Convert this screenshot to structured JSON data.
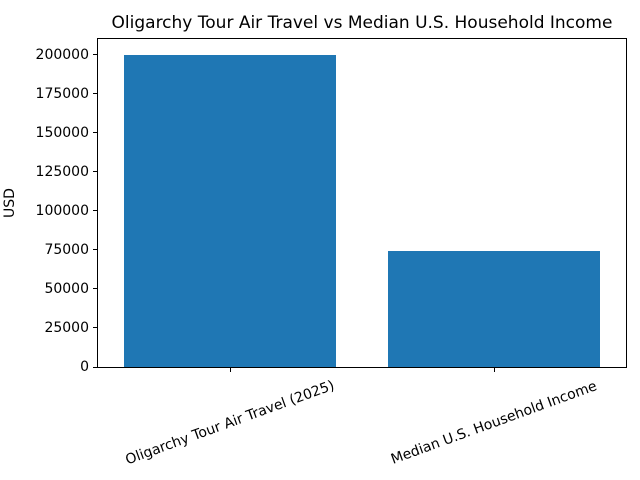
{
  "figure": {
    "background": "#ffffff",
    "text_color": "#000000",
    "spine_color": "#000000"
  },
  "chart_data": {
    "type": "bar",
    "title": "Oligarchy Tour Air Travel vs Median U.S. Household Income",
    "xlabel": "",
    "ylabel": "USD",
    "categories": [
      "Oligarchy Tour Air Travel (2025)",
      "Median U.S. Household Income"
    ],
    "values": [
      200000,
      74000
    ],
    "bar_color": "#1f77b4",
    "ylim": [
      0,
      210000
    ],
    "yticks": [
      0,
      25000,
      50000,
      75000,
      100000,
      125000,
      150000,
      175000,
      200000
    ],
    "grid": false,
    "legend": "none",
    "x_tick_label_rotation_deg": 20,
    "bar_width_fraction": 0.8
  }
}
